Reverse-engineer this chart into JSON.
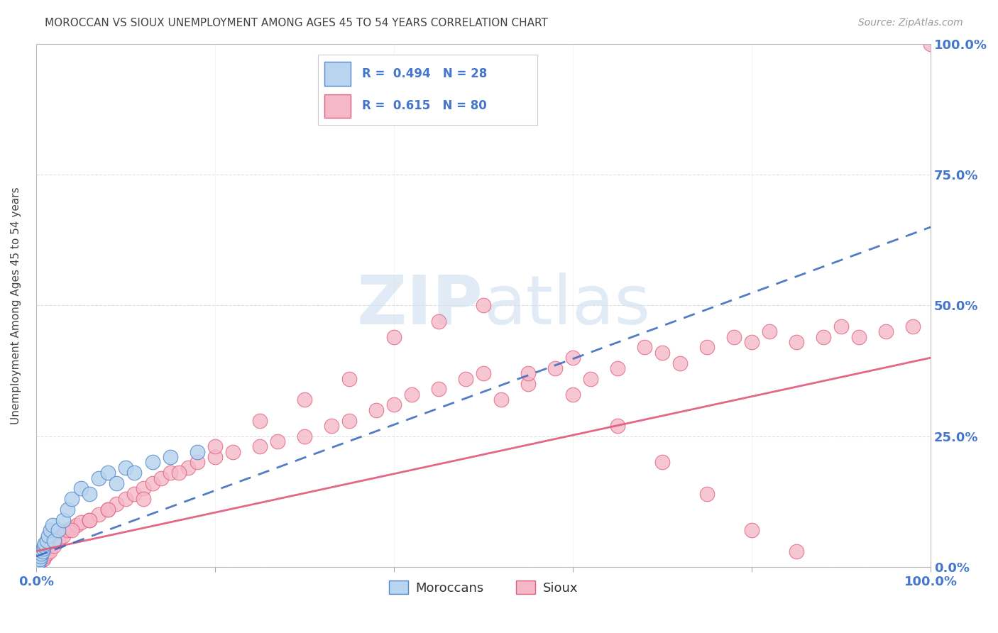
{
  "title": "MOROCCAN VS SIOUX UNEMPLOYMENT AMONG AGES 45 TO 54 YEARS CORRELATION CHART",
  "source": "Source: ZipAtlas.com",
  "ylabel": "Unemployment Among Ages 45 to 54 years",
  "moroccan_R": 0.494,
  "moroccan_N": 28,
  "sioux_R": 0.615,
  "sioux_N": 80,
  "moroccan_color": "#b8d4ee",
  "moroccan_edge_color": "#5588cc",
  "moroccan_line_color": "#3366bb",
  "sioux_color": "#f5b8c8",
  "sioux_edge_color": "#e06080",
  "sioux_line_color": "#e05878",
  "background_color": "#ffffff",
  "grid_color": "#cccccc",
  "title_color": "#444444",
  "axis_label_color": "#4477cc",
  "legend_moroccan_label": "Moroccans",
  "legend_sioux_label": "Sioux",
  "watermark_color": "#ccdff0",
  "moroccan_x": [
    0.2,
    0.3,
    0.4,
    0.5,
    0.6,
    0.7,
    0.8,
    0.9,
    1.0,
    1.2,
    1.4,
    1.6,
    1.8,
    2.0,
    2.5,
    3.0,
    3.5,
    4.0,
    5.0,
    6.0,
    7.0,
    8.0,
    9.0,
    10.0,
    11.0,
    13.0,
    15.0,
    18.0
  ],
  "moroccan_y": [
    0.5,
    1.0,
    1.5,
    2.0,
    2.5,
    3.0,
    3.5,
    4.0,
    4.5,
    5.0,
    6.0,
    7.0,
    8.0,
    5.0,
    7.0,
    9.0,
    11.0,
    13.0,
    15.0,
    14.0,
    17.0,
    18.0,
    16.0,
    19.0,
    18.0,
    20.0,
    21.0,
    22.0
  ],
  "sioux_x": [
    0.3,
    0.5,
    0.8,
    1.0,
    1.2,
    1.5,
    2.0,
    2.5,
    3.0,
    3.5,
    4.0,
    4.5,
    5.0,
    6.0,
    7.0,
    8.0,
    9.0,
    10.0,
    11.0,
    12.0,
    13.0,
    14.0,
    15.0,
    17.0,
    18.0,
    20.0,
    22.0,
    25.0,
    27.0,
    30.0,
    33.0,
    35.0,
    38.0,
    40.0,
    42.0,
    45.0,
    48.0,
    50.0,
    52.0,
    55.0,
    58.0,
    60.0,
    62.0,
    65.0,
    68.0,
    70.0,
    72.0,
    75.0,
    78.0,
    80.0,
    82.0,
    85.0,
    88.0,
    90.0,
    92.0,
    95.0,
    98.0,
    100.0,
    2.0,
    4.0,
    6.0,
    8.0,
    12.0,
    16.0,
    20.0,
    25.0,
    30.0,
    35.0,
    40.0,
    45.0,
    50.0,
    55.0,
    60.0,
    65.0,
    70.0,
    75.0,
    80.0,
    85.0
  ],
  "sioux_y": [
    0.5,
    1.0,
    1.5,
    2.0,
    2.5,
    3.0,
    4.0,
    5.0,
    6.0,
    7.0,
    7.5,
    8.0,
    8.5,
    9.0,
    10.0,
    11.0,
    12.0,
    13.0,
    14.0,
    15.0,
    16.0,
    17.0,
    18.0,
    19.0,
    20.0,
    21.0,
    22.0,
    23.0,
    24.0,
    25.0,
    27.0,
    28.0,
    30.0,
    31.0,
    33.0,
    34.0,
    36.0,
    37.0,
    32.0,
    35.0,
    38.0,
    40.0,
    36.0,
    38.0,
    42.0,
    41.0,
    39.0,
    42.0,
    44.0,
    43.0,
    45.0,
    43.0,
    44.0,
    46.0,
    44.0,
    45.0,
    46.0,
    100.0,
    5.0,
    7.0,
    9.0,
    11.0,
    13.0,
    18.0,
    23.0,
    28.0,
    32.0,
    36.0,
    44.0,
    47.0,
    50.0,
    37.0,
    33.0,
    27.0,
    20.0,
    14.0,
    7.0,
    3.0
  ],
  "moroccan_trend_x0": 0.0,
  "moroccan_trend_y0": 2.0,
  "moroccan_trend_x1": 100.0,
  "moroccan_trend_y1": 65.0,
  "sioux_trend_x0": 0.0,
  "sioux_trend_y0": 3.0,
  "sioux_trend_x1": 100.0,
  "sioux_trend_y1": 40.0,
  "xlim": [
    0,
    100
  ],
  "ylim": [
    0,
    100
  ]
}
